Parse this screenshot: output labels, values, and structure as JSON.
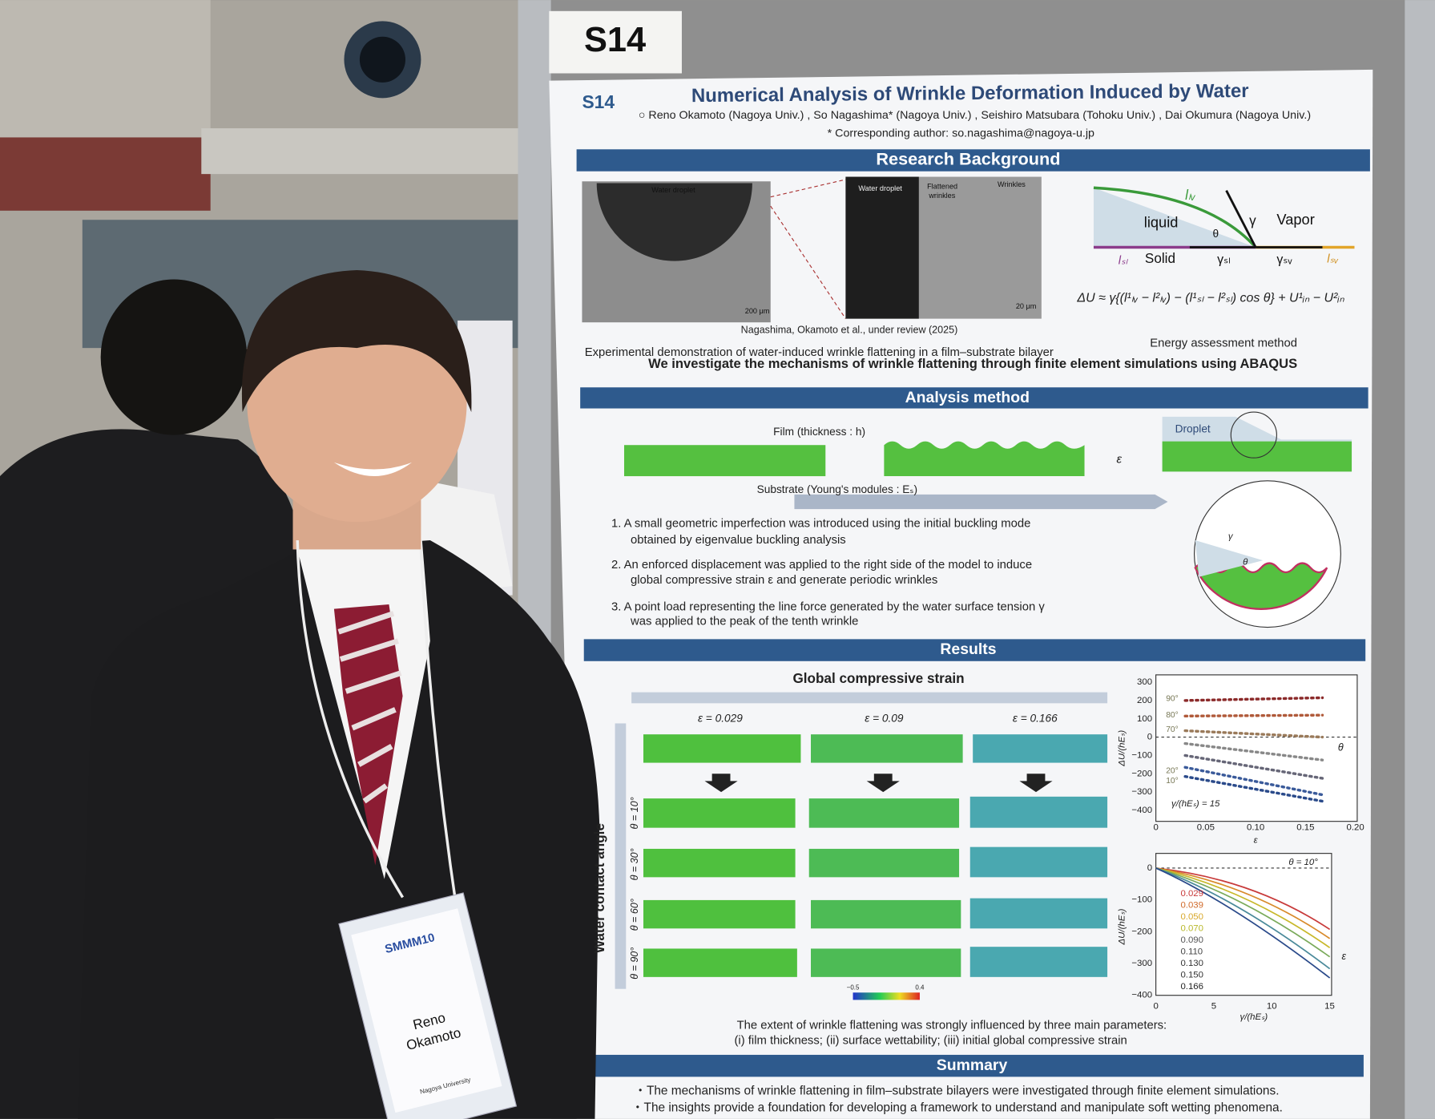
{
  "board_label": "S14",
  "poster": {
    "number": "S14",
    "title": "Numerical Analysis of Wrinkle Deformation Induced by Water",
    "authors": "○ Reno Okamoto (Nagoya Univ.) , So Nagashima* (Nagoya Univ.) , Seishiro Matsubara (Tohoku Univ.) , Dai Okumura (Nagoya Univ.)",
    "corresponding": "* Corresponding author: so.nagashima@nagoya-u.jp",
    "background": {
      "heading": "Research Background",
      "photo_labels": [
        "Water droplet",
        "Water droplet",
        "Flattened",
        "wrinkles",
        "Wrinkles"
      ],
      "scale_bars": [
        "200 μm",
        "20 μm"
      ],
      "citation": "Nagashima, Okamoto et al., under review (2025)",
      "caption": "Experimental demonstration of water-induced wrinkle flattening in a film–substrate bilayer",
      "diagram_labels": [
        "lₗᵥ",
        "liquid",
        "θ",
        "γ",
        "Vapor",
        "lₛₗ",
        "Solid",
        "γₛₗ",
        "γₛᵥ",
        "lₛᵥ"
      ],
      "formula": "ΔU ≈ γ{(l¹ₗᵥ − l²ₗᵥ) − (l¹ₛₗ − l²ₛₗ) cos θ} + U¹ᵢₙ − U²ᵢₙ",
      "energy_caption": "Energy assessment method",
      "statement": "We investigate the mechanisms of wrinkle flattening through finite element simulations using ABAQUS"
    },
    "method": {
      "heading": "Analysis method",
      "film_label": "Film (thickness : h)",
      "substrate_label": "Substrate (Young's modules : Eₛ)",
      "strain_label": "ε",
      "droplet_label": "Droplet",
      "zoom_labels": [
        "γ",
        "θ"
      ],
      "steps": [
        [
          "1. A small geometric imperfection was introduced using the initial buckling mode",
          "obtained by  eigenvalue buckling analysis"
        ],
        [
          "2. An enforced displacement was applied to the right side of the model to induce",
          "global compressive strain ε and generate periodic wrinkles"
        ],
        [
          "3. A point load representing the line force generated by the water surface tension γ",
          "was applied to the peak of the tenth wrinkle"
        ]
      ]
    },
    "results": {
      "heading": "Results",
      "strain_heading": "Global compressive strain",
      "strain_cases": [
        "ε = 0.029",
        "ε = 0.09",
        "ε = 0.166"
      ],
      "angle_axis": "Water contact angle",
      "angle_cases": [
        "θ = 10°",
        "θ = 30°",
        "θ = 60°",
        "θ = 90°"
      ],
      "colorbar_ticks": [
        "−0.5",
        "0.4"
      ],
      "plot1": {
        "yticks": [
          "300",
          "200",
          "100",
          "0",
          "−100",
          "−200",
          "−300",
          "−400"
        ],
        "xticks": [
          "0",
          "0.05",
          "0.10",
          "0.15",
          "0.20"
        ],
        "xlabel": "ε",
        "ylabel": "ΔU/(hEₛ)",
        "angles": [
          "90°",
          "80°",
          "70°",
          "20°",
          "10°"
        ],
        "angle_axis": "θ",
        "note": "γ/(hEₛ) = 15"
      },
      "plot2": {
        "yticks": [
          "0",
          "−100",
          "−200",
          "−300",
          "−400"
        ],
        "xticks": [
          "0",
          "5",
          "10",
          "15"
        ],
        "xlabel": "γ/(hEₛ)",
        "ylabel": "ΔU/(hEₛ)",
        "note": "θ = 10°",
        "legend": [
          "0.029",
          "0.039",
          "0.050",
          "0.070",
          "0.090",
          "0.110",
          "0.130",
          "0.150",
          "0.166"
        ],
        "legend_axis": "ε"
      },
      "conclusion": [
        "The extent of wrinkle flattening was strongly influenced by three main parameters:",
        "(i) film thickness; (ii) surface wettability; (iii) initial global compressive strain"
      ]
    },
    "summary": {
      "heading": "Summary",
      "bullets": [
        "・The mechanisms of wrinkle flattening in film–substrate bilayers were investigated through finite element simulations.",
        "・The insights provide a foundation for developing a framework to understand and manipulate soft wetting phenomena."
      ]
    }
  },
  "badge": {
    "event": "SMMM10",
    "name": [
      "Reno",
      "Okamoto"
    ],
    "affiliation": "Nagoya University"
  }
}
